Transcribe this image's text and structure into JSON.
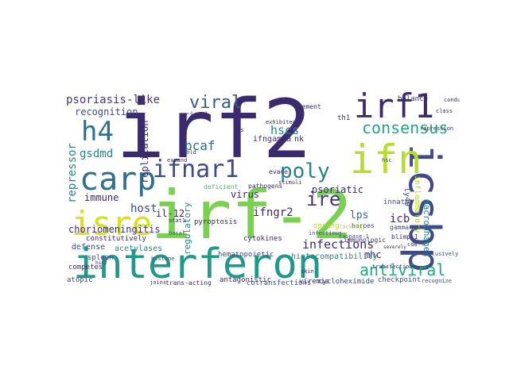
{
  "words": {
    "irf_2_big": "irf-2",
    "irf2": "irf2",
    "interferon": "interferon",
    "icsbp": "icsbp",
    "ifn": "ifn",
    "irf1": "irf1",
    "carp": "carp",
    "isre": "isre",
    "h4": "h4",
    "consensus": "consensus",
    "viral": "viral",
    "ifnar1": "ifnar1",
    "antiviral": "antiviral",
    "poly": "poly",
    "ire": "ire",
    "psoriasis_like": "psoriasis-like",
    "gsdmd": "gsdmd",
    "repressor": "repressor",
    "recognition": "recognition",
    "immune": "immune",
    "host": "host",
    "hscs": "hscs",
    "pcaf": "pcaf",
    "infections": "infections",
    "mhc": "mhc",
    "icb": "icb",
    "lps": "lps",
    "ifngr2": "ifngr2",
    "chorio": "choriomeningitis",
    "il12": "il-12",
    "virus": "virus",
    "psoriatic": "psoriatic",
    "replication": "replication",
    "regulatory": "regulatory",
    "rigi": "rig-i",
    "defense": "defense",
    "acetylases": "acetylases",
    "competes": "competes",
    "atopic": "atopic",
    "constitutively": "constitutively",
    "spleen": "spleen",
    "macrophages": "macrophages",
    "inflammatory": "inflammatory",
    "ly49": "ly49",
    "innate": "innate",
    "gamma": "gamma",
    "histocompat": "histocompatibility",
    "hematopoietic": "hematopoietic",
    "antagonistic": "antagonistic",
    "cotransfections": "cotransfections",
    "viremia": "viremia",
    "cycloheximide": "cycloheximide",
    "checkpoint": "checkpoint",
    "trans_acting": "trans-acting",
    "cytokines": "cytokines",
    "pathogens": "pathogens",
    "deficient": "deficient",
    "pyroptosis": "pyroptosis",
    "spring": "spring",
    "ifngamma": "ifngamma",
    "nk": "nk",
    "th1": "th1",
    "balance": "balance",
    "element": "element",
    "immunologic": "immunologic",
    "harpes": "harpes",
    "blimp": "blimp-1",
    "caspase": "caspase-1",
    "evade": "evade",
    "marrow": "marrow",
    "stimuli": "stimuli",
    "exhibited": "exhibited",
    "transfection": "transfection",
    "infectious": "infectious",
    "skin": "skin",
    "recognize": "recognize",
    "conduct": "conduct",
    "class": "class",
    "hsc": "hsc",
    "repression": "repression",
    "cd8": "cd8",
    "exclusively": "exclusively",
    "locking": "locking",
    "fold": "fold",
    "expand": "expand",
    "stat1": "stat1",
    "histone": "histone",
    "basal": "basal",
    "gas": "gas",
    "joins": "joins",
    "severely": "severely",
    "hsc2": "hsc2"
  },
  "palette": {
    "dark_indigo": "#3b2b6e",
    "indigo": "#46337e",
    "slate_blue": "#3e4a89",
    "blue": "#365c8d",
    "steel": "#2e6e8e",
    "teal": "#25858e",
    "teal_green": "#1f9a8a",
    "green": "#22a884",
    "bright_green": "#44bf70",
    "lime": "#7ad151",
    "yellow_green": "#b5de2b",
    "yellow": "#d8e219"
  }
}
